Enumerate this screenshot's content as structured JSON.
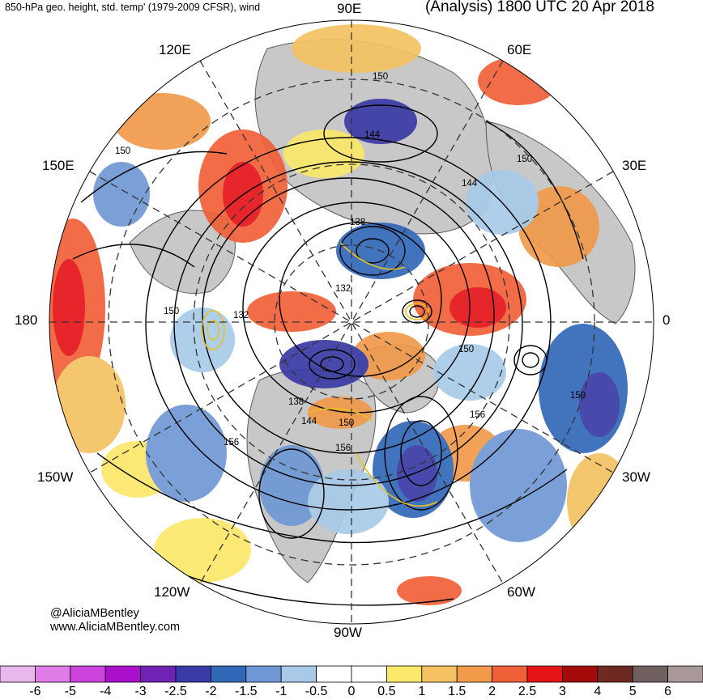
{
  "header": {
    "left_title": "850-hPa geo. height, std. temp' (1979-2009 CFSR), wind",
    "right_title": "(Analysis) 1800 UTC 20 Apr 2018"
  },
  "longitude_labels": {
    "lon_90e": "90E",
    "lon_120e": "120E",
    "lon_60e": "60E",
    "lon_150e": "150E",
    "lon_30e": "30E",
    "lon_180": "180",
    "lon_0": "0",
    "lon_150w": "150W",
    "lon_30w": "30W",
    "lon_120w": "120W",
    "lon_60w": "60W",
    "lon_90w": "90W"
  },
  "contour_labels": [
    {
      "name": "contour-150-top",
      "text": "150"
    },
    {
      "name": "contour-144-top",
      "text": "144"
    },
    {
      "name": "contour-150-ne",
      "text": "150"
    },
    {
      "name": "contour-144-ne",
      "text": "144"
    },
    {
      "name": "contour-150-w",
      "text": "150"
    },
    {
      "name": "contour-138-n",
      "text": "138"
    },
    {
      "name": "contour-132-c",
      "text": "132"
    },
    {
      "name": "contour-150-left",
      "text": "150"
    },
    {
      "name": "contour-132-w",
      "text": "132"
    },
    {
      "name": "contour-150-e",
      "text": "150"
    },
    {
      "name": "contour-150-far-e",
      "text": "150"
    },
    {
      "name": "contour-138-s",
      "text": "138"
    },
    {
      "name": "contour-144-s",
      "text": "144"
    },
    {
      "name": "contour-150-s",
      "text": "150"
    },
    {
      "name": "contour-156-se",
      "text": "156"
    },
    {
      "name": "contour-156-sw",
      "text": "156"
    },
    {
      "name": "contour-156-s",
      "text": "156"
    }
  ],
  "credit": {
    "handle": "@AliciaMBentley",
    "website": "www.AliciaMBentley.com"
  },
  "colorbar": {
    "colors": [
      "#e8b8ec",
      "#e07ce8",
      "#cc44dc",
      "#aa10cc",
      "#7022b4",
      "#3a3aa6",
      "#3268b8",
      "#6f98d4",
      "#a8cae8",
      "#ffffff",
      "#ffffff",
      "#fce86a",
      "#f4c262",
      "#f09a4a",
      "#f06038",
      "#e41418",
      "#a40a0a",
      "#6e2a22",
      "#706060",
      "#a89898"
    ],
    "tick_labels": [
      "-6",
      "-5",
      "-4",
      "-3",
      "-2.5",
      "-2",
      "-1.5",
      "-1",
      "-0.5",
      "0",
      "0.5",
      "1",
      "1.5",
      "2",
      "2.5",
      "3",
      "4",
      "5",
      "6"
    ]
  }
}
